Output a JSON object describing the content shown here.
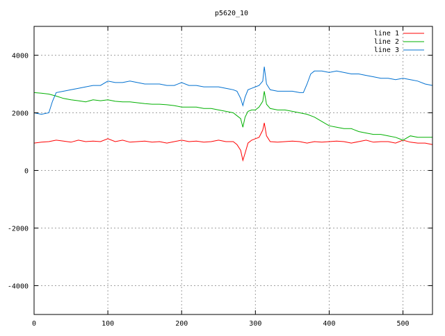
{
  "chart_data": {
    "type": "line",
    "title": "p5620_10",
    "xlabel": "",
    "ylabel": "",
    "xlim": [
      0,
      540
    ],
    "ylim": [
      -5000,
      5000
    ],
    "x_ticks": [
      0,
      100,
      200,
      300,
      400,
      500
    ],
    "y_ticks": [
      -4000,
      -2000,
      0,
      2000,
      4000
    ],
    "grid": true,
    "legend_position": "top-right",
    "series": [
      {
        "name": "line 1",
        "color": "#ff0000",
        "x": [
          0,
          10,
          20,
          30,
          40,
          50,
          60,
          70,
          80,
          90,
          100,
          110,
          120,
          130,
          140,
          150,
          160,
          170,
          180,
          190,
          200,
          210,
          220,
          230,
          240,
          250,
          260,
          270,
          275,
          280,
          283,
          286,
          290,
          295,
          300,
          305,
          310,
          312,
          315,
          320,
          330,
          340,
          350,
          360,
          370,
          380,
          390,
          400,
          410,
          420,
          430,
          440,
          450,
          460,
          470,
          480,
          490,
          500,
          510,
          520,
          530,
          540
        ],
        "values": [
          950,
          980,
          1000,
          1050,
          1020,
          980,
          1050,
          1000,
          1020,
          1000,
          1100,
          1000,
          1050,
          980,
          1000,
          1020,
          980,
          1000,
          950,
          1000,
          1050,
          1000,
          1020,
          980,
          1000,
          1050,
          1000,
          1000,
          900,
          700,
          350,
          600,
          950,
          1050,
          1100,
          1150,
          1400,
          1650,
          1200,
          1000,
          980,
          1000,
          1020,
          1000,
          950,
          1000,
          980,
          1000,
          1020,
          1000,
          950,
          1000,
          1050,
          980,
          1000,
          1000,
          950,
          1050,
          980,
          950,
          950,
          900
        ]
      },
      {
        "name": "line 2",
        "color": "#00b000",
        "x": [
          0,
          10,
          20,
          30,
          40,
          50,
          60,
          70,
          80,
          90,
          100,
          110,
          120,
          130,
          140,
          150,
          160,
          170,
          180,
          190,
          200,
          210,
          220,
          230,
          240,
          250,
          260,
          270,
          275,
          280,
          283,
          286,
          290,
          295,
          300,
          305,
          310,
          312,
          315,
          320,
          330,
          340,
          350,
          360,
          370,
          380,
          390,
          400,
          410,
          420,
          430,
          440,
          450,
          460,
          470,
          480,
          490,
          500,
          510,
          520,
          530,
          540
        ],
        "values": [
          2700,
          2680,
          2650,
          2580,
          2500,
          2450,
          2420,
          2380,
          2450,
          2420,
          2450,
          2400,
          2380,
          2380,
          2350,
          2320,
          2300,
          2300,
          2280,
          2250,
          2200,
          2200,
          2200,
          2150,
          2150,
          2100,
          2050,
          2000,
          1900,
          1800,
          1500,
          1850,
          2050,
          2100,
          2100,
          2200,
          2400,
          2750,
          2300,
          2150,
          2100,
          2100,
          2050,
          2000,
          1950,
          1850,
          1700,
          1550,
          1500,
          1450,
          1450,
          1350,
          1300,
          1250,
          1250,
          1200,
          1150,
          1050,
          1200,
          1150,
          1150,
          1150
        ]
      },
      {
        "name": "line 3",
        "color": "#0070d0",
        "x": [
          0,
          10,
          20,
          25,
          30,
          40,
          50,
          60,
          70,
          80,
          90,
          100,
          110,
          120,
          130,
          140,
          150,
          160,
          170,
          180,
          190,
          200,
          210,
          220,
          230,
          240,
          250,
          260,
          270,
          275,
          280,
          283,
          286,
          290,
          295,
          300,
          305,
          310,
          312,
          315,
          320,
          330,
          340,
          350,
          360,
          365,
          370,
          375,
          380,
          390,
          400,
          410,
          420,
          430,
          440,
          450,
          460,
          470,
          480,
          490,
          500,
          510,
          520,
          530,
          540
        ],
        "values": [
          2000,
          1950,
          2000,
          2400,
          2700,
          2750,
          2800,
          2850,
          2900,
          2950,
          2950,
          3100,
          3050,
          3050,
          3100,
          3050,
          3000,
          3000,
          3000,
          2950,
          2950,
          3050,
          2950,
          2950,
          2900,
          2900,
          2900,
          2850,
          2800,
          2750,
          2500,
          2250,
          2550,
          2800,
          2850,
          2900,
          2950,
          3100,
          3600,
          3000,
          2800,
          2750,
          2750,
          2750,
          2700,
          2700,
          3000,
          3350,
          3450,
          3450,
          3400,
          3450,
          3400,
          3350,
          3350,
          3300,
          3250,
          3200,
          3200,
          3150,
          3200,
          3150,
          3100,
          3000,
          2950
        ]
      }
    ]
  }
}
